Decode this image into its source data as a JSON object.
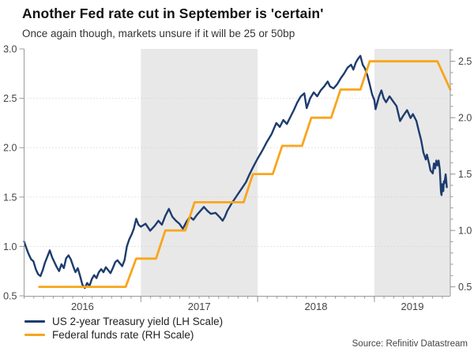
{
  "header": {
    "title": "Another Fed rate cut in September is 'certain'",
    "subtitle": "Once again though, markets unsure if it will be 25 or 50bp"
  },
  "legend": {
    "items": [
      {
        "label": "US 2-year Treasury yield (LH Scale)",
        "color": "#1d3c6e"
      },
      {
        "label": "Federal funds rate (RH Scale)",
        "color": "#f9a51b"
      }
    ]
  },
  "footer": {
    "source": "Source: Refinitiv Datastream"
  },
  "chart_data": {
    "type": "line",
    "title": "Another Fed rate cut in September is 'certain'",
    "subtitle": "Once again though, markets unsure if it will be 25 or 50bp",
    "x_axis": {
      "min": 2016.0,
      "max": 2019.65,
      "year_starts": [
        2016,
        2017,
        2018,
        2019
      ],
      "year_labels": [
        "2016",
        "2017",
        "2018",
        "2019"
      ],
      "minor_tick_step_years": 0.0833
    },
    "left_axis": {
      "min": 0.5,
      "max": 3.0,
      "ticks": [
        0.5,
        1.0,
        1.5,
        2.0,
        2.5,
        3.0
      ]
    },
    "right_axis": {
      "min": 0.42,
      "max": 2.61,
      "ticks": [
        0.5,
        1.0,
        1.5,
        2.0,
        2.5
      ],
      "minor_from": 0.5,
      "minor_to": 2.6,
      "minor_step": 0.1
    },
    "grid_values_left": [
      1.0,
      1.5,
      2.0,
      2.5
    ],
    "grid_style": "dotted",
    "band_color": "#e8e8e8",
    "axis_color": "#9a9a9a",
    "label_color": "#444444",
    "shaded_year_spans": [
      [
        2017.0,
        2018.0
      ],
      [
        2019.0,
        2019.65
      ]
    ],
    "series": [
      {
        "name": "US 2-year Treasury yield (LH Scale)",
        "key": "treasury-yield",
        "axis": "left",
        "color": "#1d3c6e",
        "width": 2.4,
        "points": [
          [
            2016.0,
            1.05
          ],
          [
            2016.02,
            0.98
          ],
          [
            2016.04,
            0.92
          ],
          [
            2016.06,
            0.87
          ],
          [
            2016.08,
            0.85
          ],
          [
            2016.1,
            0.77
          ],
          [
            2016.12,
            0.72
          ],
          [
            2016.14,
            0.7
          ],
          [
            2016.16,
            0.76
          ],
          [
            2016.18,
            0.84
          ],
          [
            2016.2,
            0.9
          ],
          [
            2016.22,
            0.96
          ],
          [
            2016.24,
            0.89
          ],
          [
            2016.26,
            0.84
          ],
          [
            2016.28,
            0.79
          ],
          [
            2016.3,
            0.75
          ],
          [
            2016.32,
            0.82
          ],
          [
            2016.34,
            0.78
          ],
          [
            2016.36,
            0.88
          ],
          [
            2016.38,
            0.91
          ],
          [
            2016.4,
            0.87
          ],
          [
            2016.42,
            0.8
          ],
          [
            2016.44,
            0.74
          ],
          [
            2016.46,
            0.78
          ],
          [
            2016.48,
            0.7
          ],
          [
            2016.5,
            0.61
          ],
          [
            2016.52,
            0.58
          ],
          [
            2016.54,
            0.63
          ],
          [
            2016.56,
            0.6
          ],
          [
            2016.58,
            0.67
          ],
          [
            2016.6,
            0.71
          ],
          [
            2016.62,
            0.68
          ],
          [
            2016.64,
            0.74
          ],
          [
            2016.66,
            0.77
          ],
          [
            2016.68,
            0.74
          ],
          [
            2016.7,
            0.79
          ],
          [
            2016.72,
            0.76
          ],
          [
            2016.74,
            0.73
          ],
          [
            2016.76,
            0.78
          ],
          [
            2016.78,
            0.84
          ],
          [
            2016.8,
            0.86
          ],
          [
            2016.82,
            0.83
          ],
          [
            2016.84,
            0.8
          ],
          [
            2016.86,
            0.86
          ],
          [
            2016.88,
            1.0
          ],
          [
            2016.9,
            1.07
          ],
          [
            2016.92,
            1.12
          ],
          [
            2016.94,
            1.18
          ],
          [
            2016.96,
            1.28
          ],
          [
            2016.98,
            1.22
          ],
          [
            2017.0,
            1.2
          ],
          [
            2017.04,
            1.23
          ],
          [
            2017.08,
            1.16
          ],
          [
            2017.12,
            1.21
          ],
          [
            2017.15,
            1.26
          ],
          [
            2017.18,
            1.22
          ],
          [
            2017.21,
            1.31
          ],
          [
            2017.24,
            1.38
          ],
          [
            2017.27,
            1.3
          ],
          [
            2017.3,
            1.26
          ],
          [
            2017.33,
            1.23
          ],
          [
            2017.36,
            1.18
          ],
          [
            2017.39,
            1.25
          ],
          [
            2017.42,
            1.3
          ],
          [
            2017.45,
            1.27
          ],
          [
            2017.48,
            1.32
          ],
          [
            2017.51,
            1.36
          ],
          [
            2017.54,
            1.4
          ],
          [
            2017.57,
            1.36
          ],
          [
            2017.6,
            1.33
          ],
          [
            2017.64,
            1.34
          ],
          [
            2017.68,
            1.29
          ],
          [
            2017.7,
            1.26
          ],
          [
            2017.72,
            1.3
          ],
          [
            2017.74,
            1.36
          ],
          [
            2017.78,
            1.44
          ],
          [
            2017.82,
            1.51
          ],
          [
            2017.86,
            1.58
          ],
          [
            2017.9,
            1.65
          ],
          [
            2017.93,
            1.73
          ],
          [
            2017.96,
            1.8
          ],
          [
            2018.0,
            1.89
          ],
          [
            2018.04,
            1.97
          ],
          [
            2018.08,
            2.06
          ],
          [
            2018.12,
            2.14
          ],
          [
            2018.16,
            2.25
          ],
          [
            2018.19,
            2.21
          ],
          [
            2018.22,
            2.28
          ],
          [
            2018.25,
            2.24
          ],
          [
            2018.28,
            2.31
          ],
          [
            2018.31,
            2.38
          ],
          [
            2018.34,
            2.46
          ],
          [
            2018.37,
            2.52
          ],
          [
            2018.4,
            2.55
          ],
          [
            2018.42,
            2.4
          ],
          [
            2018.45,
            2.5
          ],
          [
            2018.48,
            2.56
          ],
          [
            2018.51,
            2.52
          ],
          [
            2018.54,
            2.58
          ],
          [
            2018.57,
            2.62
          ],
          [
            2018.6,
            2.67
          ],
          [
            2018.62,
            2.62
          ],
          [
            2018.65,
            2.6
          ],
          [
            2018.68,
            2.64
          ],
          [
            2018.71,
            2.7
          ],
          [
            2018.74,
            2.75
          ],
          [
            2018.77,
            2.81
          ],
          [
            2018.8,
            2.84
          ],
          [
            2018.82,
            2.79
          ],
          [
            2018.84,
            2.86
          ],
          [
            2018.86,
            2.9
          ],
          [
            2018.88,
            2.93
          ],
          [
            2018.9,
            2.84
          ],
          [
            2018.92,
            2.8
          ],
          [
            2018.94,
            2.73
          ],
          [
            2018.96,
            2.64
          ],
          [
            2018.98,
            2.54
          ],
          [
            2019.0,
            2.48
          ],
          [
            2019.01,
            2.39
          ],
          [
            2019.04,
            2.52
          ],
          [
            2019.06,
            2.58
          ],
          [
            2019.08,
            2.5
          ],
          [
            2019.1,
            2.46
          ],
          [
            2019.13,
            2.52
          ],
          [
            2019.16,
            2.47
          ],
          [
            2019.19,
            2.42
          ],
          [
            2019.22,
            2.27
          ],
          [
            2019.25,
            2.33
          ],
          [
            2019.28,
            2.38
          ],
          [
            2019.31,
            2.3
          ],
          [
            2019.33,
            2.34
          ],
          [
            2019.36,
            2.27
          ],
          [
            2019.38,
            2.17
          ],
          [
            2019.4,
            2.08
          ],
          [
            2019.42,
            1.95
          ],
          [
            2019.44,
            1.88
          ],
          [
            2019.45,
            1.93
          ],
          [
            2019.47,
            1.83
          ],
          [
            2019.48,
            1.77
          ],
          [
            2019.5,
            1.74
          ],
          [
            2019.51,
            1.84
          ],
          [
            2019.52,
            1.79
          ],
          [
            2019.53,
            1.87
          ],
          [
            2019.54,
            1.82
          ],
          [
            2019.55,
            1.87
          ],
          [
            2019.56,
            1.78
          ],
          [
            2019.57,
            1.55
          ],
          [
            2019.575,
            1.52
          ],
          [
            2019.58,
            1.63
          ],
          [
            2019.59,
            1.56
          ],
          [
            2019.595,
            1.66
          ],
          [
            2019.6,
            1.64
          ],
          [
            2019.61,
            1.73
          ],
          [
            2019.62,
            1.6
          ]
        ]
      },
      {
        "name": "Federal funds rate (RH Scale)",
        "key": "fed-funds-rate",
        "axis": "right",
        "color": "#f9a51b",
        "width": 2.8,
        "points": [
          [
            2016.13,
            0.5
          ],
          [
            2016.87,
            0.5
          ],
          [
            2016.96,
            0.75
          ],
          [
            2017.13,
            0.75
          ],
          [
            2017.21,
            1.0
          ],
          [
            2017.38,
            1.0
          ],
          [
            2017.46,
            1.25
          ],
          [
            2017.88,
            1.25
          ],
          [
            2017.96,
            1.5
          ],
          [
            2018.13,
            1.5
          ],
          [
            2018.21,
            1.75
          ],
          [
            2018.38,
            1.75
          ],
          [
            2018.46,
            2.0
          ],
          [
            2018.63,
            2.0
          ],
          [
            2018.71,
            2.25
          ],
          [
            2018.88,
            2.25
          ],
          [
            2018.96,
            2.5
          ],
          [
            2019.54,
            2.5
          ],
          [
            2019.65,
            2.25
          ]
        ]
      }
    ]
  }
}
